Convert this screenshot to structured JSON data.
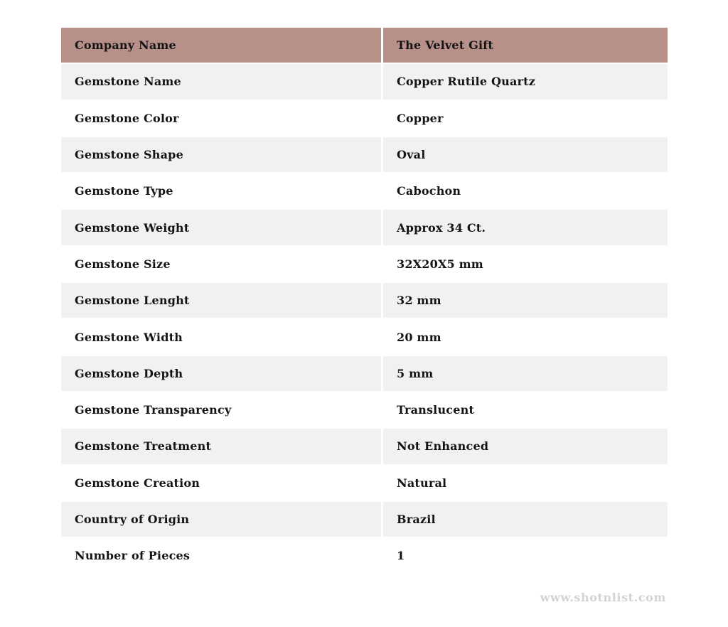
{
  "table": {
    "header": {
      "label": "Company Name",
      "value": "The Velvet Gift"
    },
    "rows": [
      {
        "label": "Gemstone Name",
        "value": "Copper Rutile Quartz"
      },
      {
        "label": "Gemstone Color",
        "value": "Copper"
      },
      {
        "label": "Gemstone Shape",
        "value": "Oval"
      },
      {
        "label": "Gemstone Type",
        "value": "Cabochon"
      },
      {
        "label": "Gemstone Weight",
        "value": "Approx 34 Ct."
      },
      {
        "label": "Gemstone Size",
        "value": "32X20X5 mm"
      },
      {
        "label": "Gemstone Lenght",
        "value": "32 mm"
      },
      {
        "label": "Gemstone Width",
        "value": "20 mm"
      },
      {
        "label": "Gemstone Depth",
        "value": "5 mm"
      },
      {
        "label": "Gemstone Transparency",
        "value": "Translucent"
      },
      {
        "label": "Gemstone Treatment",
        "value": "Not Enhanced"
      },
      {
        "label": "Gemstone Creation",
        "value": "Natural"
      },
      {
        "label": "Country of Origin",
        "value": "Brazil"
      },
      {
        "label": "Number of Pieces",
        "value": "1"
      }
    ]
  },
  "footer": {
    "watermark": "www.shotnlist.com"
  },
  "colors": {
    "header_bg": "#b7908a",
    "row_alt_bg": "#f1f1f1",
    "row_bg": "#ffffff",
    "text": "#141414",
    "watermark": "#d3d3d3"
  }
}
